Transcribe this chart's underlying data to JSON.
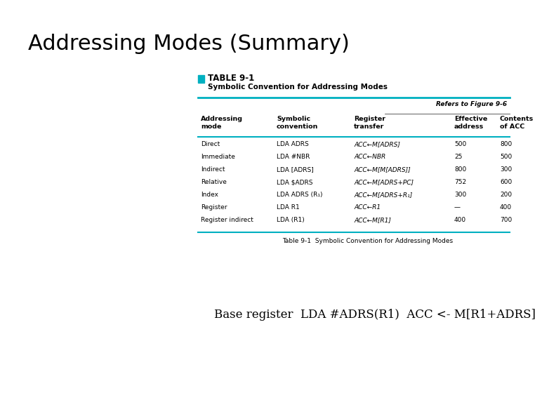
{
  "title": "Addressing Modes (Summary)",
  "title_fontsize": 22,
  "title_color": "#000000",
  "bg_color": "#ffffff",
  "table_subtitle": "Symbolic Convention for Addressing Modes",
  "refers_text": "Refers to Figure 9-6",
  "col_headers": [
    "Addressing\nmode",
    "Symbolic\nconvention",
    "Register\ntransfer",
    "Effective\naddress",
    "Contents\nof ACC"
  ],
  "rows": [
    [
      "Direct",
      "LDA ADRS",
      "ACC←M[ADRS]",
      "500",
      "800"
    ],
    [
      "Immediate",
      "LDA #NBR",
      "ACC←NBR",
      "25",
      "500"
    ],
    [
      "Indirect",
      "LDA [ADRS]",
      "ACC←M[M[ADRS]]",
      "800",
      "300"
    ],
    [
      "Relative",
      "LDA $ADRS",
      "ACC←M[ADRS+PC]",
      "752",
      "600"
    ],
    [
      "Index",
      "LDA ADRS (R₁)",
      "ACC←M[ADRS+R₁]",
      "300",
      "200"
    ],
    [
      "Register",
      "LDA R1",
      "ACC←R1",
      "—",
      "400"
    ],
    [
      "Register indirect",
      "LDA (R1)",
      "ACC←M[R1]",
      "400",
      "700"
    ]
  ],
  "caption": "Table 9-1  Symbolic Convention for Addressing Modes",
  "bottom_text": "Base register  LDA #ADRS(R1)  ACC <- M[R1+ADRS]",
  "cyan_color": "#00b0c0",
  "dark_line_color": "#444444"
}
